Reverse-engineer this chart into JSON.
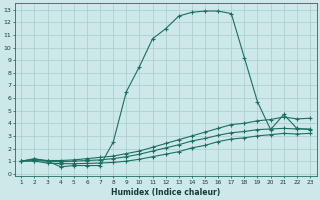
{
  "xlabel": "Humidex (Indice chaleur)",
  "bg_color": "#cce8e8",
  "grid_color": "#b0d4d4",
  "line_color": "#1a7060",
  "xlim": [
    1,
    23
  ],
  "ylim": [
    0,
    13
  ],
  "xticks": [
    1,
    2,
    3,
    4,
    5,
    6,
    7,
    8,
    9,
    10,
    11,
    12,
    13,
    14,
    15,
    16,
    17,
    18,
    19,
    20,
    21,
    22,
    23
  ],
  "yticks": [
    0,
    1,
    2,
    3,
    4,
    5,
    6,
    7,
    8,
    9,
    10,
    11,
    12,
    13
  ],
  "series1_x": [
    1,
    2,
    3,
    4,
    5,
    6,
    7,
    8,
    9,
    10,
    11,
    12,
    13,
    14,
    15,
    16,
    17,
    18,
    19,
    20,
    21,
    22,
    23
  ],
  "series1_y": [
    1.0,
    1.2,
    1.0,
    0.55,
    0.65,
    0.65,
    0.65,
    2.5,
    6.5,
    8.5,
    10.7,
    11.5,
    12.5,
    12.8,
    12.9,
    12.9,
    12.7,
    9.2,
    5.7,
    3.5,
    4.7,
    3.6,
    3.5
  ],
  "series2_x": [
    1,
    2,
    3,
    4,
    5,
    6,
    7,
    8,
    9,
    10,
    11,
    12,
    13,
    14,
    15,
    16,
    17,
    18,
    19,
    20,
    21,
    22,
    23
  ],
  "series2_y": [
    1.0,
    1.15,
    1.05,
    1.05,
    1.1,
    1.2,
    1.3,
    1.4,
    1.6,
    1.8,
    2.1,
    2.4,
    2.7,
    3.0,
    3.3,
    3.6,
    3.9,
    4.0,
    4.2,
    4.3,
    4.5,
    4.35,
    4.4
  ],
  "series3_x": [
    1,
    2,
    3,
    4,
    5,
    6,
    7,
    8,
    9,
    10,
    11,
    12,
    13,
    14,
    15,
    16,
    17,
    18,
    19,
    20,
    21,
    22,
    23
  ],
  "series3_y": [
    1.0,
    1.05,
    1.0,
    0.95,
    1.0,
    1.05,
    1.1,
    1.2,
    1.35,
    1.55,
    1.8,
    2.05,
    2.3,
    2.6,
    2.8,
    3.05,
    3.25,
    3.35,
    3.5,
    3.55,
    3.6,
    3.55,
    3.55
  ],
  "series4_x": [
    1,
    2,
    3,
    4,
    5,
    6,
    7,
    8,
    9,
    10,
    11,
    12,
    13,
    14,
    15,
    16,
    17,
    18,
    19,
    20,
    21,
    22,
    23
  ],
  "series4_y": [
    1.0,
    1.0,
    0.85,
    0.8,
    0.8,
    0.82,
    0.85,
    0.9,
    1.0,
    1.15,
    1.35,
    1.55,
    1.75,
    2.05,
    2.25,
    2.55,
    2.75,
    2.85,
    3.0,
    3.1,
    3.2,
    3.15,
    3.2
  ]
}
